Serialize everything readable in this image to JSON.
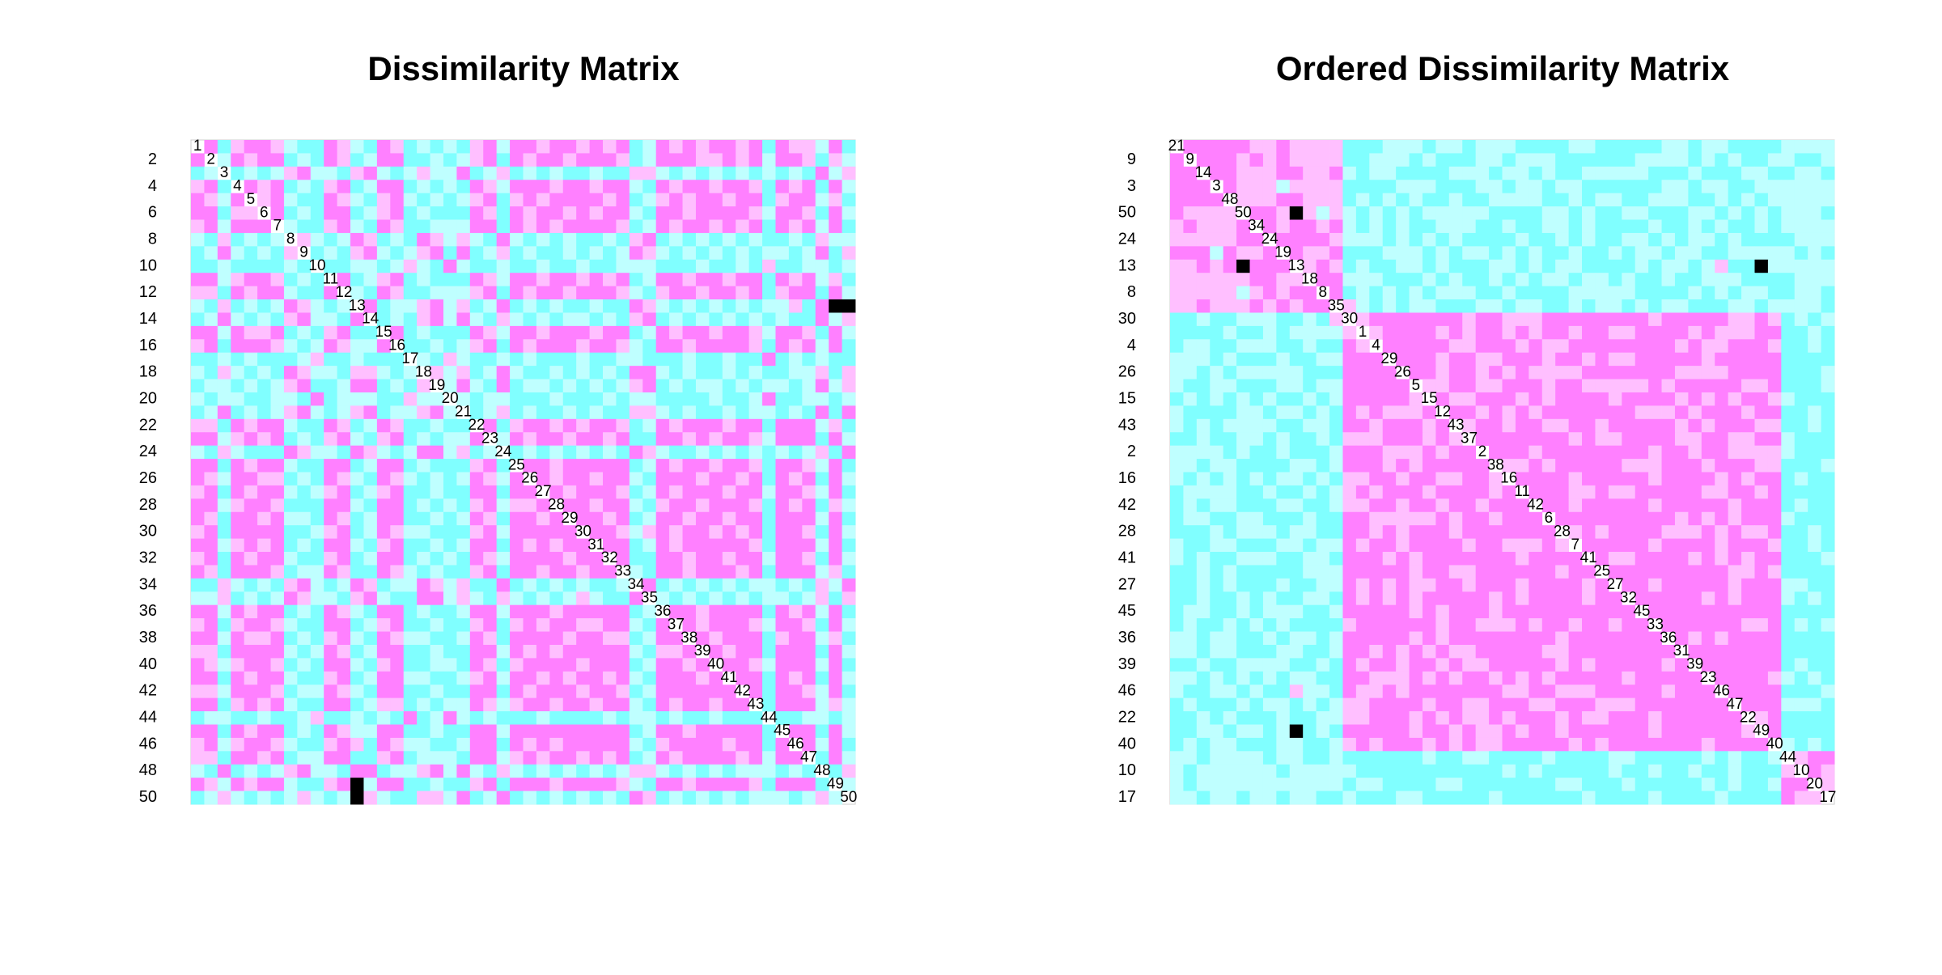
{
  "chart_data": [
    {
      "type": "heatmap",
      "title": "Dissimilarity Matrix",
      "labels": [
        1,
        2,
        3,
        4,
        5,
        6,
        7,
        8,
        9,
        10,
        11,
        12,
        13,
        14,
        15,
        16,
        17,
        18,
        19,
        20,
        21,
        22,
        23,
        24,
        25,
        26,
        27,
        28,
        29,
        30,
        31,
        32,
        33,
        34,
        35,
        36,
        37,
        38,
        39,
        40,
        41,
        42,
        43,
        44,
        45,
        46,
        47,
        48,
        49,
        50
      ],
      "colors": [
        "#ff80ff",
        "#ffbfff",
        "#bfffff",
        "#80ffff"
      ],
      "upper": [
        [
          1,
          4,
          2,
          1,
          1,
          2,
          3,
          4,
          4,
          1,
          2,
          3,
          4,
          1,
          2,
          4,
          3,
          4,
          3,
          4,
          2,
          1,
          3,
          1,
          1,
          2,
          1,
          1,
          2,
          1,
          2,
          1,
          4,
          3,
          1,
          2,
          1,
          2,
          1,
          1,
          2,
          1,
          4,
          1,
          2,
          2,
          3,
          1,
          4
        ],
        [
          3,
          1,
          2,
          1,
          1,
          4,
          3,
          4,
          1,
          2,
          4,
          3,
          1,
          1,
          4,
          4,
          3,
          4,
          3,
          2,
          1,
          4,
          1,
          2,
          1,
          1,
          2,
          1,
          1,
          1,
          2,
          4,
          3,
          1,
          1,
          1,
          2,
          2,
          1,
          2,
          1,
          3,
          1,
          1,
          2,
          4,
          2,
          3
        ],
        [
          4,
          3,
          4,
          3,
          2,
          1,
          3,
          3,
          4,
          2,
          1,
          3,
          4,
          3,
          2,
          3,
          3,
          1,
          4,
          3,
          2,
          4,
          3,
          4,
          3,
          4,
          4,
          3,
          4,
          4,
          2,
          2,
          3,
          4,
          3,
          4,
          3,
          4,
          3,
          4,
          3,
          4,
          3,
          4,
          1,
          3,
          2
        ],
        [
          1,
          2,
          1,
          4,
          3,
          4,
          2,
          1,
          4,
          3,
          1,
          1,
          4,
          3,
          4,
          3,
          4,
          1,
          2,
          3,
          1,
          1,
          1,
          2,
          1,
          1,
          2,
          1,
          1,
          3,
          4,
          1,
          2,
          1,
          1,
          2,
          1,
          1,
          2,
          4,
          1,
          2,
          1,
          4,
          1,
          3
        ],
        [
          2,
          1,
          3,
          4,
          4,
          1,
          2,
          3,
          4,
          2,
          1,
          3,
          4,
          3,
          4,
          3,
          2,
          1,
          4,
          2,
          1,
          2,
          1,
          1,
          1,
          1,
          2,
          1,
          4,
          3,
          2,
          1,
          2,
          1,
          1,
          2,
          1,
          1,
          4,
          2,
          1,
          1,
          3,
          2,
          4
        ],
        [
          1,
          4,
          3,
          4,
          1,
          1,
          4,
          3,
          2,
          1,
          4,
          3,
          4,
          4,
          4,
          1,
          2,
          4,
          1,
          2,
          1,
          1,
          2,
          1,
          2,
          1,
          1,
          3,
          4,
          1,
          1,
          2,
          1,
          1,
          1,
          1,
          2,
          3,
          1,
          1,
          2,
          4,
          1,
          3
        ],
        [
          3,
          4,
          4,
          2,
          1,
          3,
          4,
          1,
          2,
          4,
          4,
          3,
          3,
          3,
          1,
          1,
          4,
          1,
          2,
          1,
          2,
          1,
          1,
          1,
          1,
          2,
          4,
          3,
          1,
          2,
          1,
          1,
          2,
          1,
          2,
          1,
          4,
          1,
          2,
          1,
          3,
          1,
          4
        ],
        [
          2,
          3,
          4,
          3,
          1,
          2,
          4,
          3,
          4,
          1,
          2,
          3,
          2,
          3,
          4,
          1,
          3,
          4,
          3,
          4,
          3,
          4,
          4,
          3,
          4,
          2,
          1,
          4,
          3,
          4,
          3,
          4,
          3,
          4,
          3,
          4,
          4,
          3,
          4,
          2,
          3,
          3
        ],
        [
          4,
          3,
          4,
          2,
          1,
          3,
          4,
          3,
          2,
          1,
          4,
          1,
          4,
          3,
          2,
          4,
          3,
          4,
          4,
          3,
          4,
          3,
          4,
          3,
          1,
          2,
          3,
          4,
          3,
          4,
          3,
          4,
          3,
          4,
          3,
          3,
          4,
          3,
          1,
          4,
          2
        ],
        [
          4,
          4,
          3,
          3,
          4,
          3,
          2,
          3,
          4,
          1,
          3,
          4,
          4,
          3,
          4,
          4,
          3,
          4,
          4,
          3,
          4,
          4,
          3,
          3,
          3,
          4,
          4,
          4,
          3,
          4,
          4,
          3,
          4,
          2,
          4,
          4,
          3,
          3,
          4,
          3
        ],
        [
          1,
          4,
          3,
          2,
          1,
          4,
          3,
          4,
          4,
          4,
          1,
          2,
          3,
          1,
          1,
          2,
          1,
          1,
          2,
          1,
          2,
          1,
          4,
          3,
          1,
          1,
          2,
          1,
          1,
          2,
          1,
          1,
          4,
          1,
          2,
          1,
          3,
          2,
          4
        ],
        [
          3,
          4,
          1,
          2,
          4,
          4,
          3,
          3,
          3,
          2,
          1,
          4,
          1,
          2,
          1,
          1,
          2,
          1,
          1,
          1,
          2,
          3,
          4,
          2,
          1,
          1,
          2,
          1,
          1,
          2,
          1,
          4,
          2,
          1,
          1,
          4,
          1,
          3
        ],
        [
          1,
          4,
          3,
          3,
          2,
          1,
          3,
          2,
          4,
          3,
          1,
          4,
          3,
          4,
          3,
          4,
          4,
          3,
          4,
          4,
          1,
          2,
          3,
          4,
          3,
          4,
          3,
          4,
          3,
          4,
          3,
          3,
          2,
          4,
          1
        ],
        [
          4,
          3,
          4,
          2,
          1,
          3,
          1,
          3,
          4,
          2,
          3,
          4,
          3,
          4,
          3,
          3,
          4,
          3,
          4,
          2,
          1,
          4,
          3,
          4,
          3,
          4,
          3,
          4,
          3,
          4,
          3,
          4,
          4,
          1,
          3,
          2
        ],
        [
          1,
          4,
          3,
          4,
          4,
          4,
          1,
          2,
          3,
          1,
          1,
          2,
          1,
          1,
          1,
          2,
          1,
          1,
          4,
          3,
          1,
          2,
          1,
          1,
          2,
          1,
          1,
          2,
          3,
          1,
          1,
          2,
          4,
          1,
          3
        ],
        [
          4,
          4,
          3,
          4,
          3,
          2,
          1,
          4,
          1,
          2,
          1,
          1,
          1,
          2,
          1,
          1,
          2,
          3,
          4,
          1,
          1,
          2,
          1,
          1,
          1,
          1,
          2,
          4,
          1,
          2,
          1,
          3,
          1,
          4
        ],
        [
          3,
          4,
          2,
          3,
          4,
          4,
          3,
          4,
          3,
          4,
          4,
          4,
          3,
          4,
          4,
          3,
          3,
          4,
          4,
          4,
          3,
          4,
          4,
          3,
          4,
          4,
          1,
          4,
          3,
          4,
          3,
          4,
          4
        ],
        [
          2,
          3,
          2,
          4,
          3,
          1,
          3,
          4,
          4,
          3,
          4,
          3,
          4,
          3,
          4,
          1,
          1,
          3,
          4,
          3,
          4,
          4,
          3,
          4,
          3,
          4,
          4,
          3,
          3,
          2,
          4,
          2
        ],
        [
          3,
          1,
          3,
          4,
          1,
          4,
          3,
          3,
          4,
          3,
          4,
          3,
          4,
          3,
          2,
          1,
          4,
          3,
          4,
          3,
          3,
          4,
          3,
          4,
          3,
          3,
          4,
          3,
          1,
          3,
          2
        ],
        [
          3,
          4,
          3,
          3,
          4,
          4,
          4,
          3,
          4,
          4,
          4,
          3,
          4,
          3,
          3,
          4,
          4,
          4,
          4,
          3,
          4,
          4,
          3,
          1,
          4,
          4,
          3,
          3,
          4,
          3
        ],
        [
          4,
          3,
          2,
          4,
          3,
          4,
          4,
          3,
          4,
          3,
          4,
          4,
          2,
          2,
          3,
          4,
          3,
          4,
          4,
          3,
          4,
          3,
          3,
          4,
          3,
          4,
          1,
          4,
          1
        ],
        [
          1,
          4,
          2,
          1,
          1,
          2,
          1,
          2,
          1,
          1,
          2,
          4,
          3,
          1,
          2,
          1,
          1,
          1,
          2,
          1,
          1,
          4,
          1,
          1,
          1,
          3,
          2,
          4
        ],
        [
          3,
          1,
          2,
          1,
          1,
          2,
          1,
          1,
          2,
          1,
          4,
          4,
          1,
          1,
          2,
          1,
          2,
          1,
          1,
          2,
          3,
          1,
          1,
          1,
          4,
          1,
          3
        ],
        [
          4,
          3,
          4,
          3,
          4,
          3,
          4,
          3,
          4,
          1,
          2,
          3,
          4,
          4,
          3,
          4,
          3,
          4,
          3,
          4,
          3,
          4,
          3,
          2,
          4,
          1
        ],
        [
          1,
          1,
          2,
          1,
          1,
          1,
          1,
          1,
          4,
          3,
          1,
          2,
          1,
          1,
          2,
          1,
          1,
          2,
          4,
          1,
          1,
          2,
          3,
          1,
          4
        ],
        [
          1,
          2,
          1,
          1,
          2,
          1,
          1,
          3,
          4,
          1,
          1,
          1,
          2,
          1,
          1,
          2,
          1,
          4,
          1,
          2,
          1,
          4,
          1,
          3
        ],
        [
          1,
          2,
          1,
          1,
          1,
          2,
          4,
          3,
          1,
          2,
          1,
          1,
          1,
          2,
          1,
          1,
          3,
          1,
          1,
          2,
          3,
          1,
          4
        ],
        [
          1,
          1,
          2,
          1,
          1,
          3,
          4,
          2,
          1,
          1,
          2,
          1,
          1,
          1,
          2,
          4,
          1,
          2,
          1,
          4,
          2,
          3
        ],
        [
          1,
          1,
          2,
          1,
          4,
          3,
          1,
          1,
          2,
          1,
          1,
          2,
          1,
          1,
          4,
          1,
          1,
          1,
          3,
          1,
          4
        ],
        [
          1,
          1,
          2,
          3,
          2,
          1,
          2,
          1,
          1,
          2,
          1,
          2,
          1,
          4,
          1,
          1,
          2,
          4,
          1,
          3
        ],
        [
          1,
          1,
          4,
          3,
          1,
          2,
          1,
          1,
          1,
          1,
          1,
          2,
          4,
          1,
          1,
          1,
          3,
          1,
          4
        ],
        [
          1,
          4,
          4,
          1,
          1,
          2,
          1,
          1,
          2,
          1,
          1,
          3,
          1,
          1,
          2,
          4,
          1,
          3
        ],
        [
          3,
          4,
          1,
          1,
          2,
          1,
          1,
          1,
          2,
          1,
          4,
          1,
          1,
          1,
          3,
          2,
          4
        ],
        [
          1,
          4,
          3,
          4,
          3,
          4,
          3,
          4,
          3,
          3,
          4,
          3,
          4,
          2,
          3,
          1
        ],
        [
          3,
          4,
          3,
          4,
          3,
          4,
          3,
          4,
          3,
          3,
          4,
          3,
          2,
          4,
          2
        ],
        [
          1,
          1,
          2,
          1,
          1,
          1,
          1,
          4,
          1,
          2,
          1,
          3,
          1,
          4
        ],
        [
          1,
          2,
          1,
          1,
          1,
          2,
          3,
          1,
          1,
          2,
          4,
          1,
          3
        ],
        [
          1,
          2,
          1,
          1,
          1,
          4,
          2,
          1,
          1,
          3,
          2,
          4
        ],
        [
          1,
          2,
          1,
          1,
          4,
          1,
          1,
          1,
          4,
          1,
          3
        ],
        [
          1,
          1,
          2,
          3,
          1,
          1,
          1,
          3,
          1,
          4
        ],
        [
          1,
          1,
          4,
          1,
          2,
          1,
          4,
          1,
          3
        ],
        [
          1,
          4,
          1,
          1,
          2,
          3,
          1,
          4
        ],
        [
          4,
          1,
          1,
          1,
          3,
          2,
          3
        ],
        [
          4,
          4,
          3,
          3,
          4,
          3
        ],
        [
          1,
          1,
          4,
          1,
          3
        ],
        [
          1,
          3,
          1,
          4
        ],
        [
          4,
          1,
          3
        ],
        [
          4,
          2
        ],
        [
          3
        ]
      ]
    },
    {
      "type": "heatmap",
      "title": "Ordered Dissimilarity Matrix",
      "order": [
        21,
        9,
        14,
        3,
        48,
        50,
        34,
        24,
        19,
        13,
        18,
        8,
        35,
        30,
        1,
        4,
        29,
        26,
        5,
        15,
        12,
        43,
        37,
        2,
        38,
        16,
        11,
        42,
        6,
        28,
        7,
        41,
        25,
        27,
        32,
        45,
        33,
        36,
        31,
        39,
        23,
        46,
        47,
        22,
        49,
        40,
        44,
        10,
        20,
        17
      ]
    }
  ]
}
